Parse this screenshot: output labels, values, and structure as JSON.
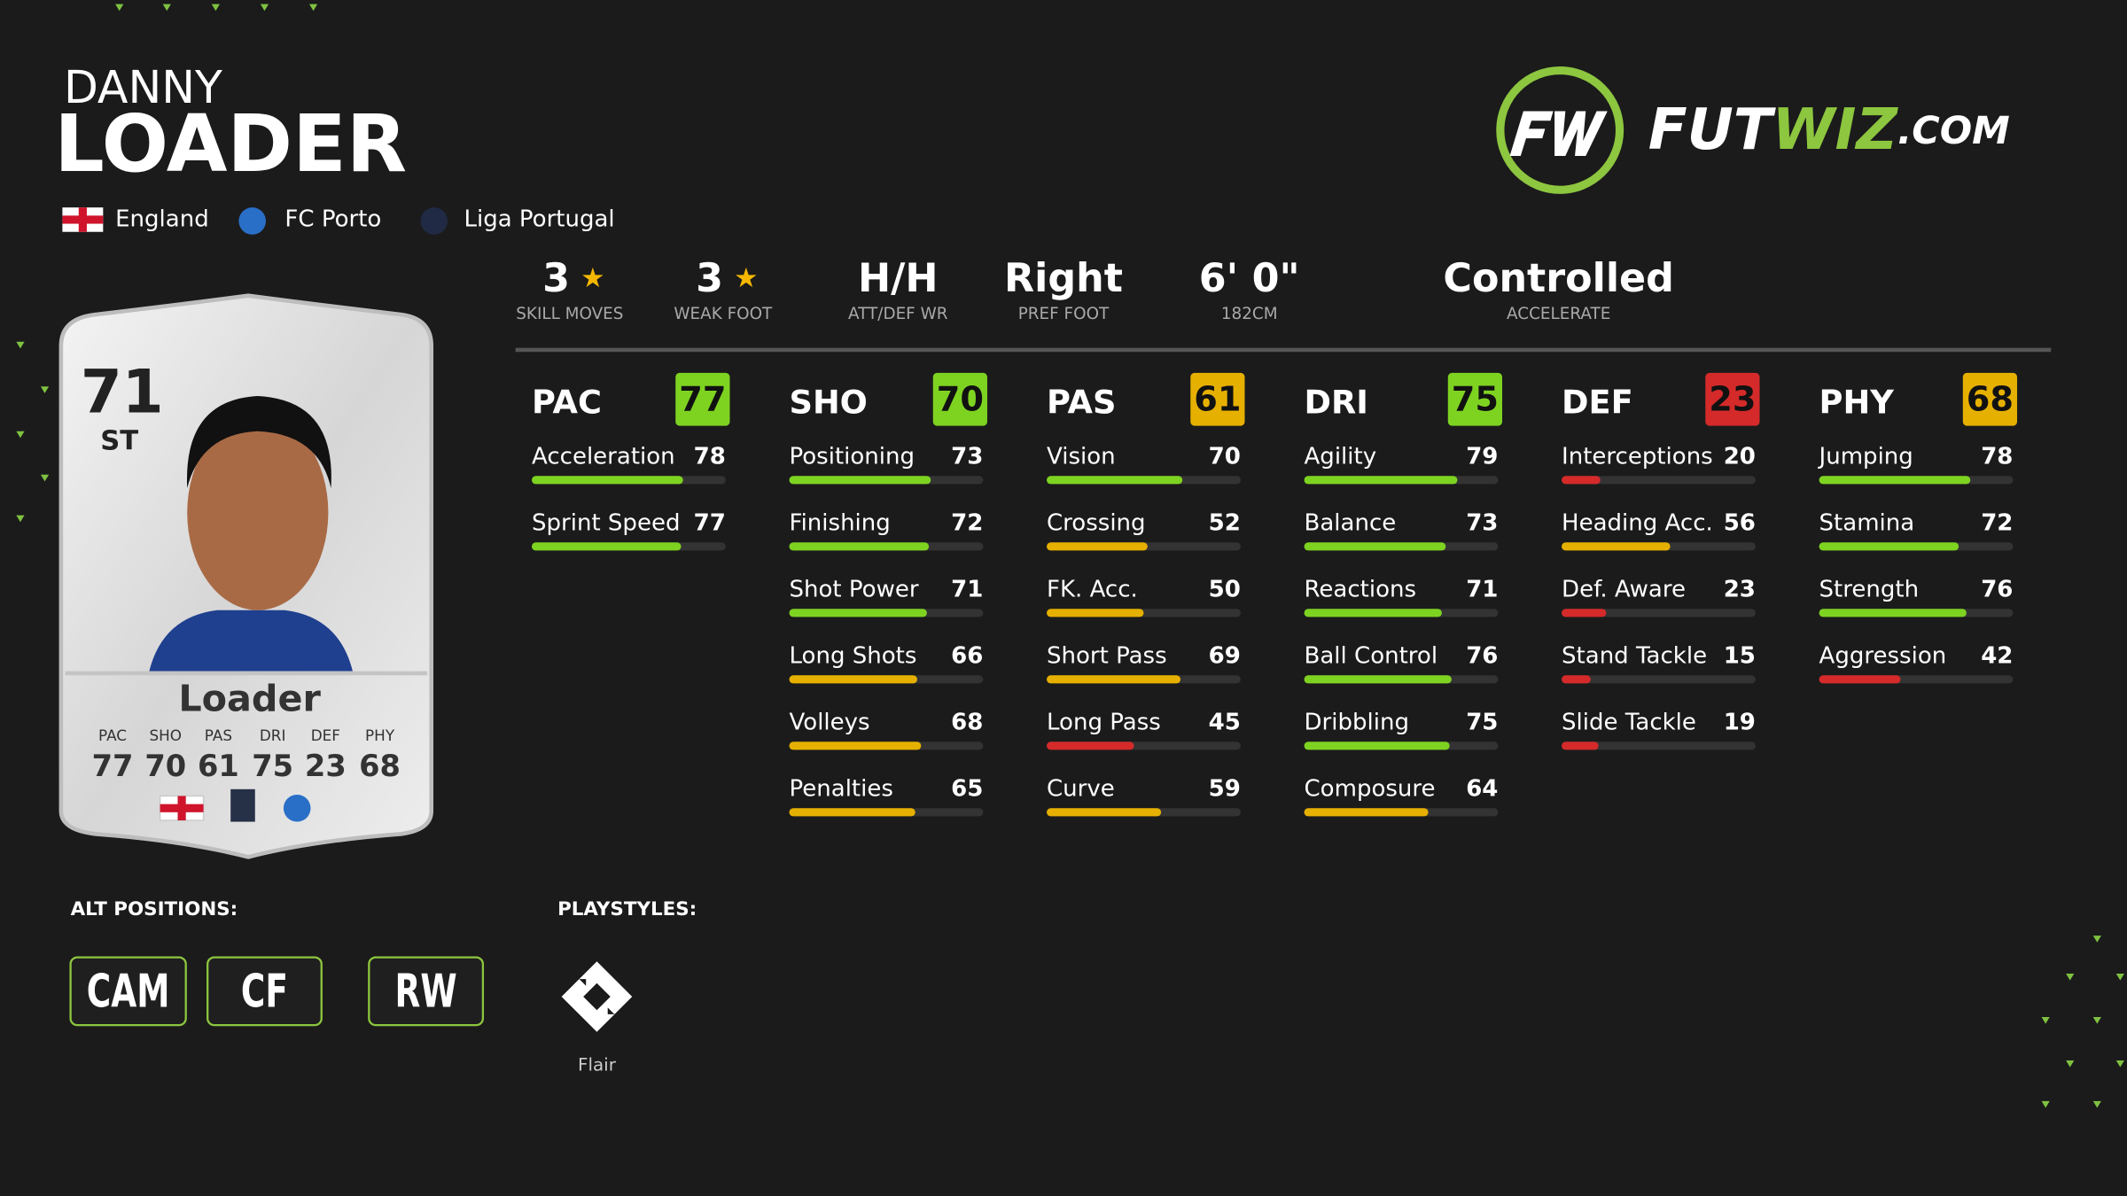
{
  "player": {
    "first_name": "DANNY",
    "last_name": "LOADER",
    "nation": "England",
    "club": "FC Porto",
    "league": "Liga Portugal"
  },
  "logo": {
    "parts": [
      "FUT",
      "WIZ",
      ".COM"
    ]
  },
  "info": [
    {
      "value": 3,
      "label": "SKILL MOVES",
      "star": true
    },
    {
      "value": 3,
      "label": "WEAK FOOT",
      "star": true
    },
    {
      "value": "H/H",
      "label": "ATT/DEF WR"
    },
    {
      "value": "Right",
      "label": "PREF FOOT"
    },
    {
      "value": "6' 0\"",
      "label": "182CM"
    },
    {
      "value": "Controlled",
      "label": "ACCELERATE"
    }
  ],
  "stat_groups": [
    {
      "name": "PAC",
      "rating": 77,
      "attributes": [
        {
          "name": "Acceleration",
          "value": 78
        },
        {
          "name": "Sprint Speed",
          "value": 77
        }
      ]
    },
    {
      "name": "SHO",
      "rating": 70,
      "attributes": [
        {
          "name": "Positioning",
          "value": 73
        },
        {
          "name": "Finishing",
          "value": 72
        },
        {
          "name": "Shot Power",
          "value": 71
        },
        {
          "name": "Long Shots",
          "value": 66
        },
        {
          "name": "Volleys",
          "value": 68
        },
        {
          "name": "Penalties",
          "value": 65
        }
      ]
    },
    {
      "name": "PAS",
      "rating": 61,
      "attributes": [
        {
          "name": "Vision",
          "value": 70
        },
        {
          "name": "Crossing",
          "value": 52
        },
        {
          "name": "FK. Acc.",
          "value": 50
        },
        {
          "name": "Short Pass",
          "value": 69
        },
        {
          "name": "Long Pass",
          "value": 45
        },
        {
          "name": "Curve",
          "value": 59
        }
      ]
    },
    {
      "name": "DRI",
      "rating": 75,
      "attributes": [
        {
          "name": "Agility",
          "value": 79
        },
        {
          "name": "Balance",
          "value": 73
        },
        {
          "name": "Reactions",
          "value": 71
        },
        {
          "name": "Ball Control",
          "value": 76
        },
        {
          "name": "Dribbling",
          "value": 75
        },
        {
          "name": "Composure",
          "value": 64
        }
      ]
    },
    {
      "name": "DEF",
      "rating": 23,
      "attributes": [
        {
          "name": "Interceptions",
          "value": 20
        },
        {
          "name": "Heading Acc.",
          "value": 56
        },
        {
          "name": "Def. Aware",
          "value": 23
        },
        {
          "name": "Stand Tackle",
          "value": 15
        },
        {
          "name": "Slide Tackle",
          "value": 19
        }
      ]
    },
    {
      "name": "PHY",
      "rating": 68,
      "attributes": [
        {
          "name": "Jumping",
          "value": 78
        },
        {
          "name": "Stamina",
          "value": 72
        },
        {
          "name": "Strength",
          "value": 76
        },
        {
          "name": "Aggression",
          "value": 42
        }
      ]
    }
  ],
  "card": {
    "rating": 71,
    "position": "ST",
    "name": "Loader",
    "stats": [
      {
        "label": "PAC",
        "value": 77
      },
      {
        "label": "SHO",
        "value": 70
      },
      {
        "label": "PAS",
        "value": 61
      },
      {
        "label": "DRI",
        "value": 75
      },
      {
        "label": "DEF",
        "value": 23
      },
      {
        "label": "PHY",
        "value": 68
      }
    ]
  },
  "alt_positions": {
    "title": "ALT POSITIONS:",
    "items": [
      "CAM",
      "CF",
      "RW"
    ]
  },
  "playstyles": {
    "title": "PLAYSTYLES:",
    "items": [
      "Flair"
    ]
  }
}
